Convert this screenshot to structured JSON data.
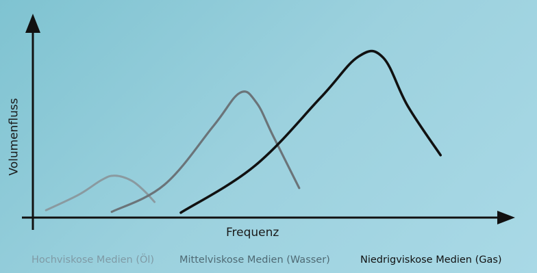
{
  "chart_data": {
    "type": "line",
    "xlabel": "Frequenz",
    "ylabel": "Volumenfluss",
    "axes_ticks": false,
    "grid": false,
    "legend_position": "bottom",
    "series": [
      {
        "name": "Hochviskose Medien (Öl)",
        "color": "#8a9aa0",
        "stroke": "light",
        "x": [
          0.8,
          2.8,
          4.2,
          5.0,
          6.0,
          6.8,
          7.4
        ],
        "y": [
          0.9,
          2.8,
          4.6,
          5.1,
          4.5,
          3.2,
          1.9
        ]
      },
      {
        "name": "Mittelviskose Medien (Wasser)",
        "color": "#6b7479",
        "stroke": "medium",
        "x": [
          4.8,
          8.0,
          11.0,
          12.6,
          13.6,
          14.6,
          16.2
        ],
        "y": [
          0.7,
          4.0,
          11.2,
          15.2,
          14.0,
          10.0,
          3.6
        ]
      },
      {
        "name": "Niedrigviskose Medien (Gas)",
        "color": "#111111",
        "stroke": "bold",
        "x": [
          9.0,
          13.5,
          17.5,
          19.8,
          21.3,
          22.8,
          24.8
        ],
        "y": [
          0.6,
          6.3,
          14.6,
          19.6,
          19.5,
          13.6,
          7.6
        ]
      }
    ]
  }
}
